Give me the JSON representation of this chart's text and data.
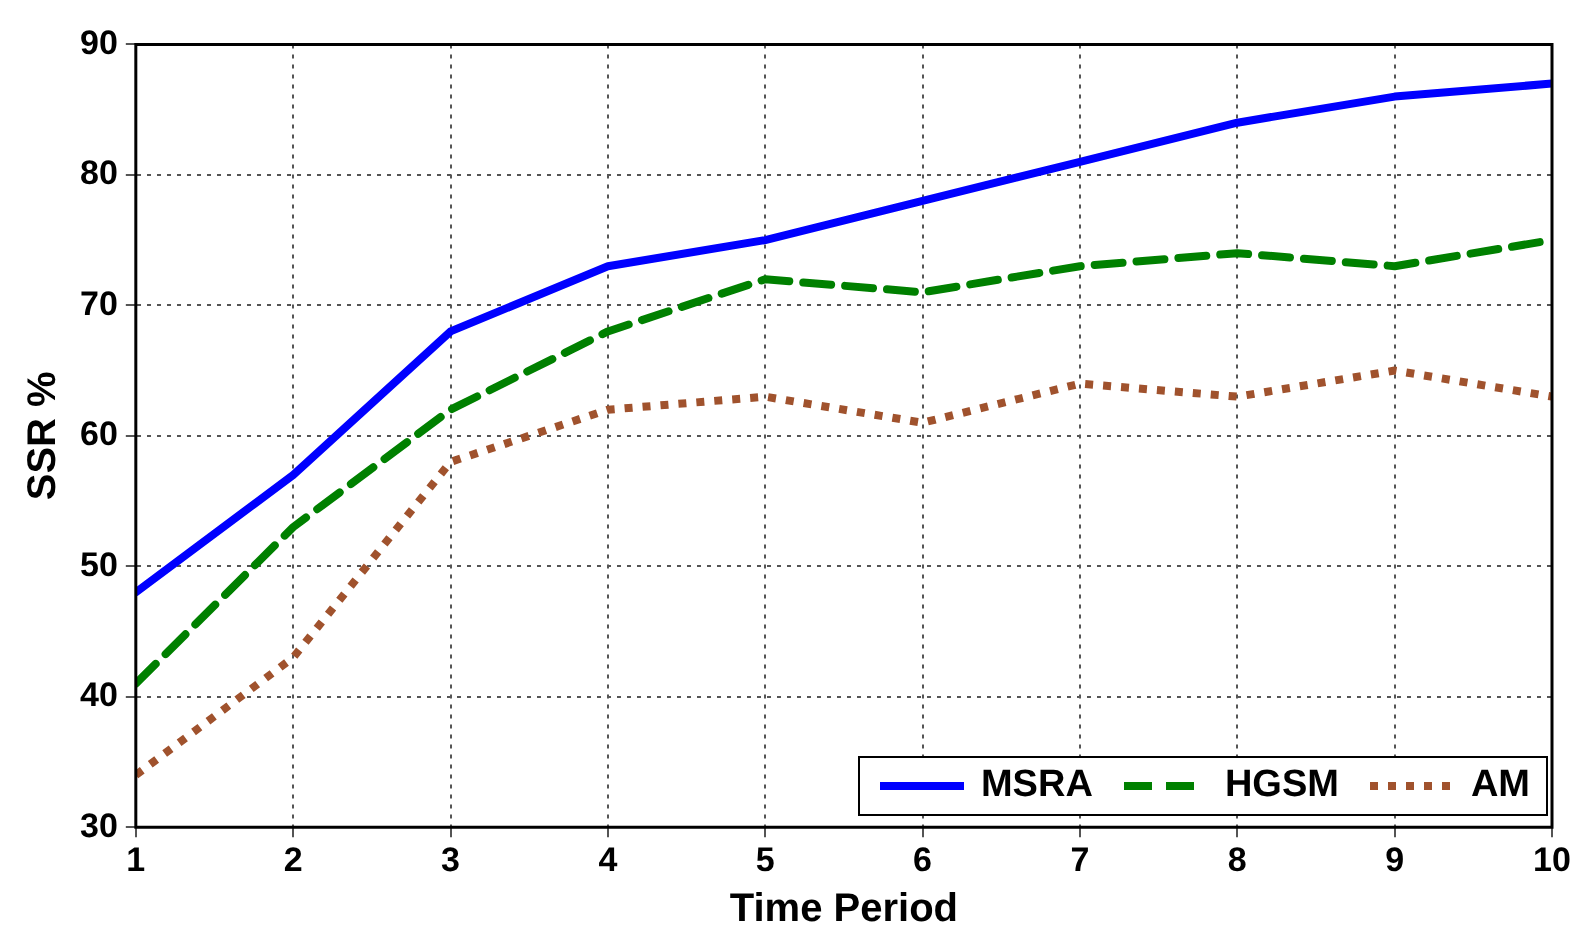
{
  "chart_data": {
    "type": "line",
    "xlabel": "Time Period",
    "ylabel": "SSR %",
    "x": [
      1,
      2,
      3,
      4,
      5,
      6,
      7,
      8,
      9,
      10
    ],
    "series": [
      {
        "name": "MSRA",
        "color": "#0000ff",
        "line_style": "solid",
        "values": [
          48,
          57,
          68,
          73,
          75,
          78,
          81,
          84,
          86,
          87
        ]
      },
      {
        "name": "HGSM",
        "color": "#008000",
        "line_style": "dashed",
        "values": [
          41,
          53,
          62,
          68,
          72,
          71,
          73,
          74,
          73,
          75
        ]
      },
      {
        "name": "AM",
        "color": "#a0522d",
        "line_style": "dotted",
        "values": [
          34,
          43,
          58,
          62,
          63,
          61,
          64,
          63,
          65,
          63
        ]
      }
    ],
    "xlim": [
      1,
      10
    ],
    "xticks": [
      1,
      2,
      3,
      4,
      5,
      6,
      7,
      8,
      9,
      10
    ],
    "ylim": [
      30,
      90
    ],
    "yticks": [
      30,
      40,
      50,
      60,
      70,
      80,
      90
    ],
    "grid": true,
    "legend": "bottom right",
    "marker": "none"
  }
}
